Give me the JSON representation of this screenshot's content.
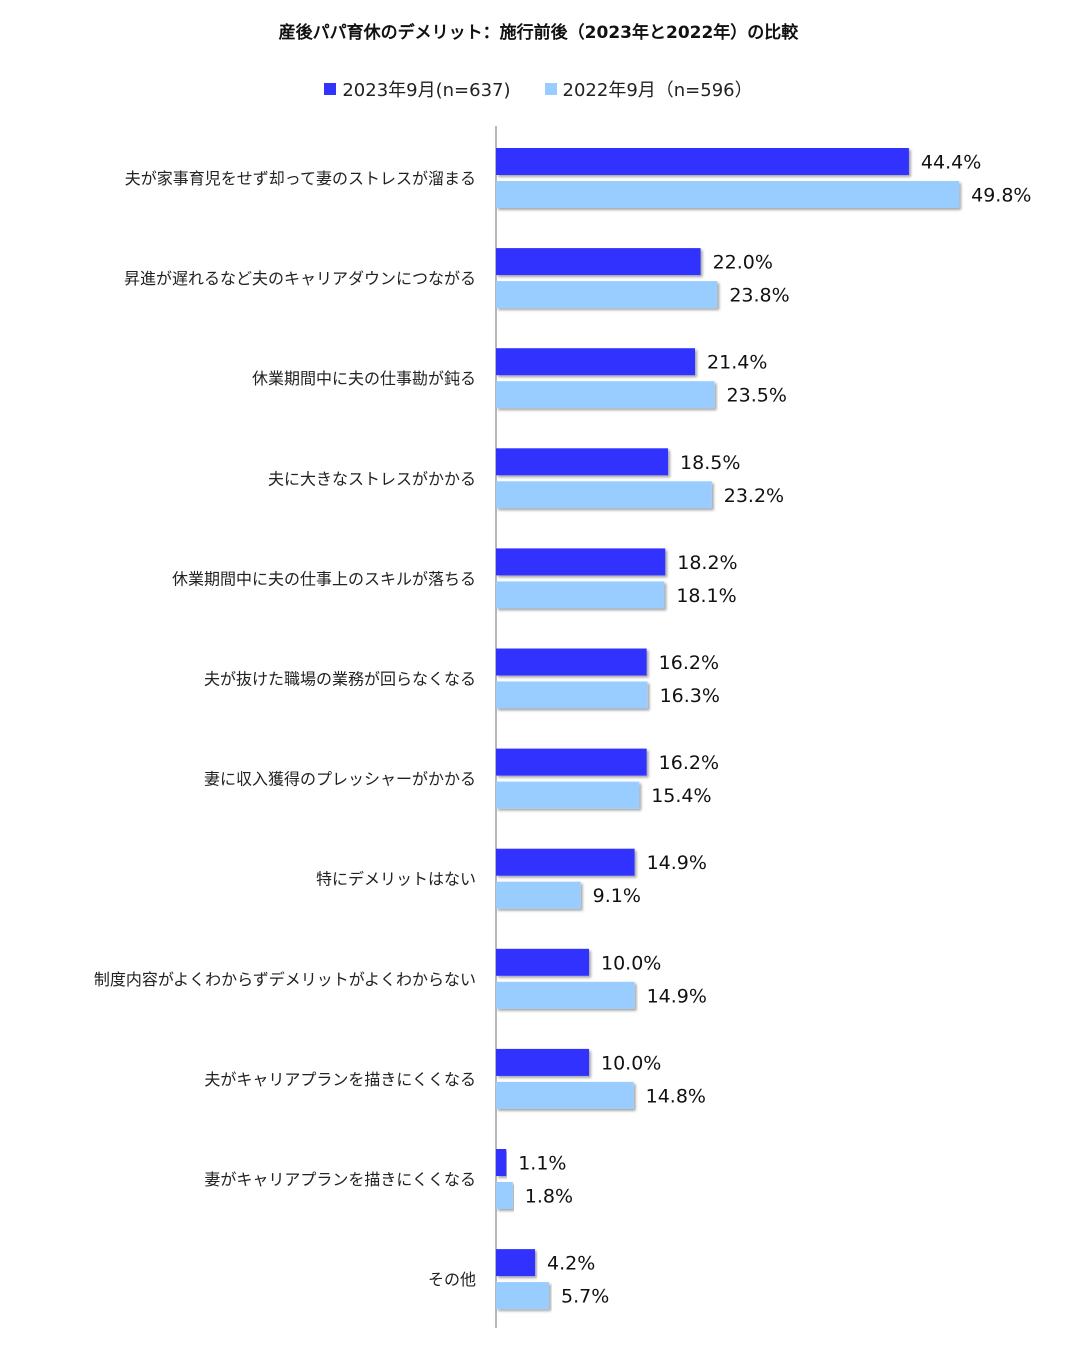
{
  "chart_data": {
    "type": "bar",
    "orientation": "horizontal",
    "title": "産後パパ育休のデメリット：施行前後（2023年と2022年）の比較",
    "categories": [
      "夫が家事育児をせず却って妻のストレスが溜まる",
      "昇進が遅れるなど夫のキャリアダウンにつながる",
      "休業期間中に夫の仕事勘が鈍る",
      "夫に大きなストレスがかかる",
      "休業期間中に夫の仕事上のスキルが落ちる",
      "夫が抜けた職場の業務が回らなくなる",
      "妻に収入獲得のプレッシャーがかかる",
      "特にデメリットはない",
      "制度内容がよくわからずデメリットがよくわからない",
      "夫がキャリアプランを描きにくくなる",
      "妻がキャリアプランを描きにくくなる",
      "その他"
    ],
    "series": [
      {
        "name": "2023年9月(n=637)",
        "color": "#3333ff",
        "values": [
          44.4,
          22.0,
          21.4,
          18.5,
          18.2,
          16.2,
          16.2,
          14.9,
          10.0,
          10.0,
          1.1,
          4.2
        ],
        "labels": [
          "44.4%",
          "22.0%",
          "21.4%",
          "18.5%",
          "18.2%",
          "16.2%",
          "16.2%",
          "14.9%",
          "10.0%",
          "10.0%",
          "1.1%",
          "4.2%"
        ]
      },
      {
        "name": "2022年9月（n=596）",
        "color": "#99ccff",
        "values": [
          49.8,
          23.8,
          23.5,
          23.2,
          18.1,
          16.3,
          15.4,
          9.1,
          14.9,
          14.8,
          1.8,
          5.7
        ],
        "labels": [
          "49.8%",
          "23.8%",
          "23.5%",
          "23.2%",
          "18.1%",
          "16.3%",
          "15.4%",
          "9.1%",
          "14.9%",
          "14.8%",
          "1.8%",
          "5.7%"
        ]
      }
    ],
    "xlim": [
      0,
      60
    ],
    "grid": false,
    "legend_position": "top"
  }
}
